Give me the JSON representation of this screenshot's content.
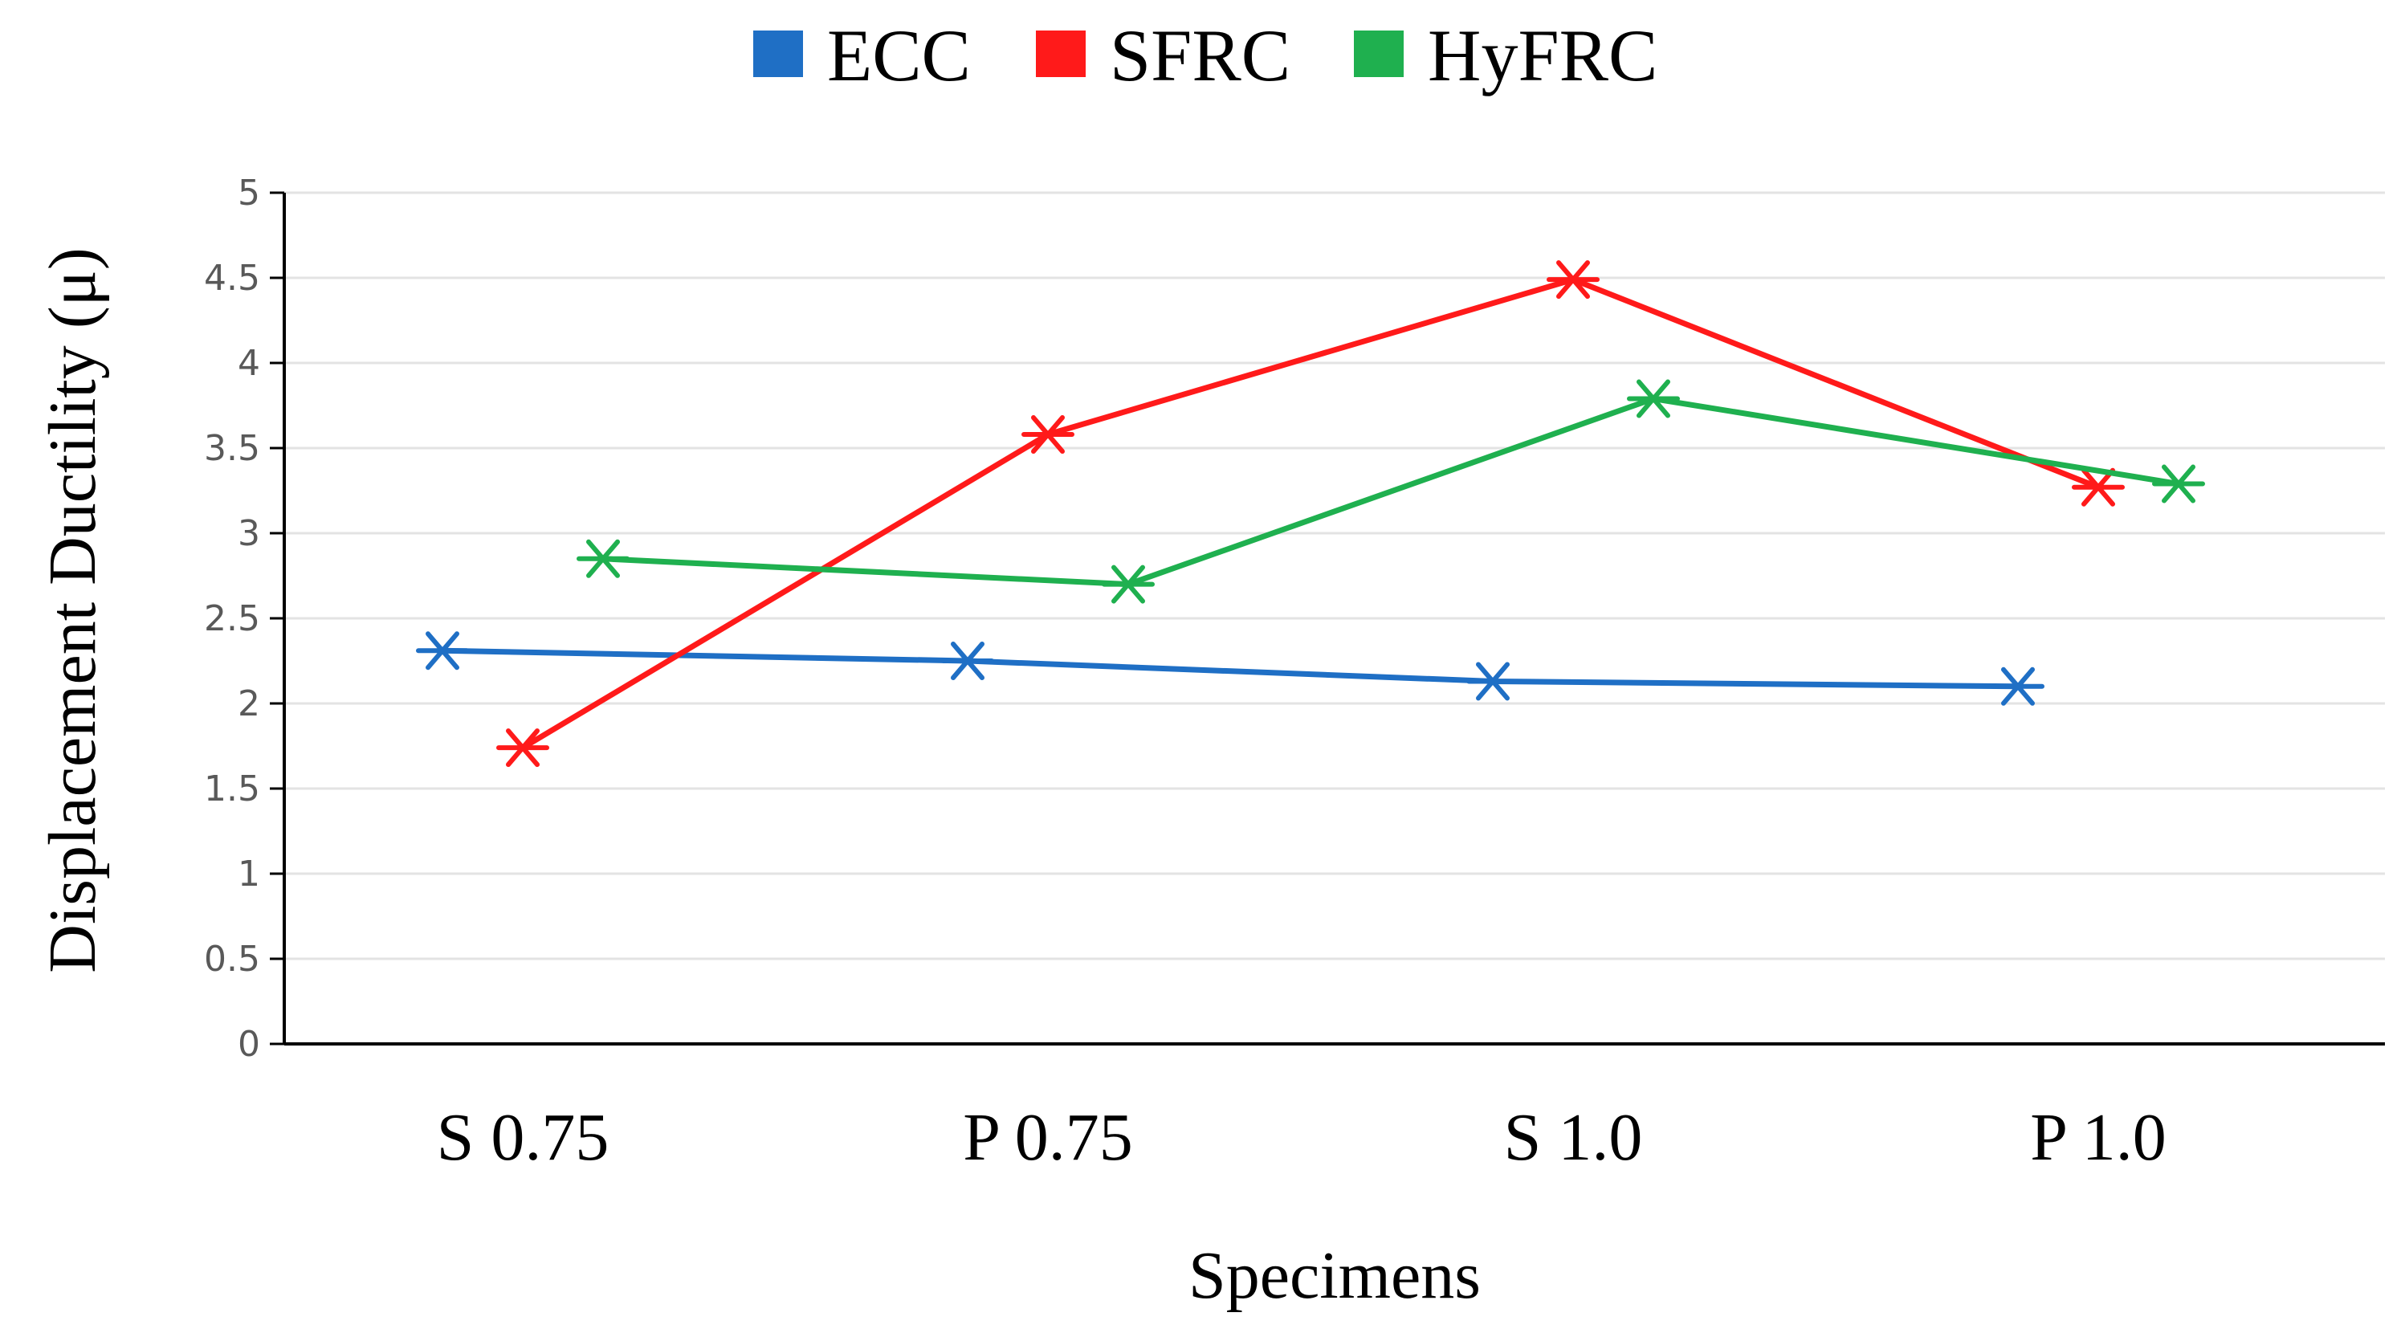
{
  "chart_data": {
    "type": "line",
    "title": "",
    "xlabel": "Specimens",
    "ylabel": "Displacement Ductility (μ)",
    "ylim": [
      0,
      5
    ],
    "y_ticks": [
      0,
      0.5,
      1,
      1.5,
      2,
      2.5,
      3,
      3.5,
      4,
      4.5,
      5
    ],
    "y_tick_labels": [
      "0",
      "0.5",
      "1",
      "1.5",
      "2",
      "2.5",
      "3",
      "3.5",
      "4",
      "4.5",
      "5"
    ],
    "categories": [
      "S 0.75",
      "P 0.75",
      "S 1.0",
      "P 1.0"
    ],
    "grid": true,
    "legend_position": "top-center",
    "marker": "asterisk",
    "series": [
      {
        "name": "ECC",
        "color": "#1f6fc5",
        "values": [
          2.31,
          2.25,
          2.13,
          2.1
        ]
      },
      {
        "name": "SFRC",
        "color": "#ff1a1a",
        "values": [
          1.74,
          3.58,
          4.49,
          3.27
        ]
      },
      {
        "name": "HyFRC",
        "color": "#1fb04f",
        "values": [
          2.85,
          2.7,
          3.79,
          3.29
        ]
      }
    ]
  }
}
